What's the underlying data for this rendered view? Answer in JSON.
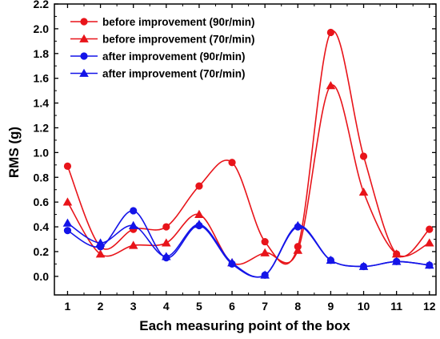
{
  "chart_data": {
    "type": "line",
    "title": "",
    "xlabel": "Each measuring point of the box",
    "ylabel": "RMS (g)",
    "xlim": [
      0.6,
      12.2
    ],
    "ylim": [
      -0.15,
      2.2
    ],
    "x": [
      1,
      2,
      3,
      4,
      5,
      6,
      7,
      8,
      9,
      10,
      11,
      12
    ],
    "x_ticks": [
      "1",
      "2",
      "3",
      "4",
      "5",
      "6",
      "7",
      "8",
      "9",
      "10",
      "11",
      "12"
    ],
    "y_ticks": [
      "0.0",
      "0.2",
      "0.4",
      "0.6",
      "0.8",
      "1.0",
      "1.2",
      "1.4",
      "1.6",
      "1.8",
      "2.0",
      "2.2"
    ],
    "y_tick_values": [
      0.0,
      0.2,
      0.4,
      0.6,
      0.8,
      1.0,
      1.2,
      1.4,
      1.6,
      1.8,
      2.0,
      2.2
    ],
    "grid": false,
    "legend_position": "top-left",
    "smooth": true,
    "series": [
      {
        "name": "before improvement (90r/min)",
        "color": "#e8141a",
        "marker": "circle",
        "values": [
          0.89,
          0.24,
          0.38,
          0.4,
          0.73,
          0.92,
          0.28,
          0.24,
          1.97,
          0.97,
          0.18,
          0.38
        ]
      },
      {
        "name": "before improvement (70r/min)",
        "color": "#e8141a",
        "marker": "triangle",
        "values": [
          0.6,
          0.18,
          0.25,
          0.27,
          0.5,
          0.11,
          0.19,
          0.21,
          1.54,
          0.68,
          0.18,
          0.27
        ]
      },
      {
        "name": "after improvement (90r/min)",
        "color": "#1414e8",
        "marker": "circle",
        "values": [
          0.37,
          0.24,
          0.53,
          0.15,
          0.41,
          0.1,
          0.01,
          0.4,
          0.13,
          0.08,
          0.12,
          0.09
        ]
      },
      {
        "name": "after improvement (70r/min)",
        "color": "#1414e8",
        "marker": "triangle",
        "values": [
          0.43,
          0.27,
          0.41,
          0.16,
          0.42,
          0.11,
          0.01,
          0.41,
          0.13,
          0.08,
          0.12,
          0.09
        ]
      }
    ]
  }
}
